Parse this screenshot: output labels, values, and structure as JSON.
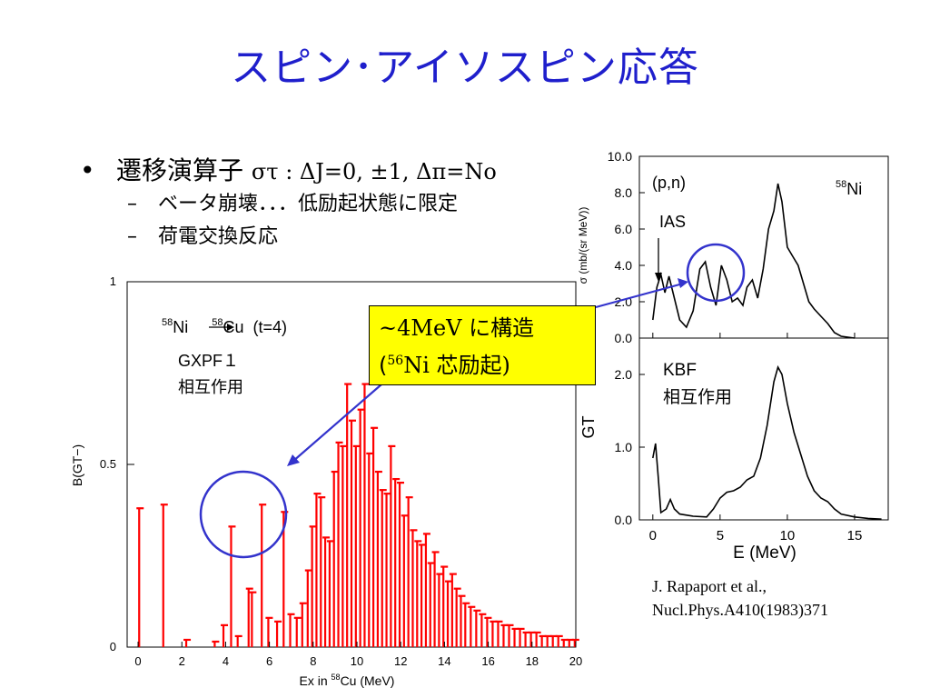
{
  "slide": {
    "title": "スピン･アイソスピン応答",
    "bullet1": {
      "prefix": "遷移演算子 ",
      "math": "στ : ΔJ=0, ±1, Δπ=No"
    },
    "sub1": "ベータ崩壊．．．低励起状態に限定",
    "sub2": "荷電交換反応",
    "callout": {
      "line1": "~4MeV に構造",
      "line2_open": "(",
      "line2_sup": "56",
      "line2_rest": "Ni 芯励起)"
    },
    "reference": {
      "line1": "J. Rapaport et al.,",
      "line2": "Nucl.Phys.A410(1983)371"
    }
  },
  "colors": {
    "title": "#1f1fcc",
    "bars": "#ff0000",
    "circle": "#3333cc",
    "callout_bg": "#ffff00"
  },
  "chart_data": [
    {
      "type": "bar",
      "ylabel": "B(GT−)",
      "xlabel": {
        "pre": "Ex in ",
        "sup": "58",
        "post": "Cu (MeV)"
      },
      "xlim": [
        -0.5,
        20
      ],
      "ylim": [
        0,
        1
      ],
      "xticks": [
        "0",
        "2",
        "4",
        "6",
        "8",
        "10",
        "12",
        "14",
        "16",
        "18",
        "20"
      ],
      "yticks": [
        "0",
        "0.5",
        "1"
      ],
      "annotation_reaction": {
        "sup1": "58",
        "el1": "Ni",
        "sup2": "58",
        "el2": "Cu",
        "rest": "(t=4)"
      },
      "annotation_interaction": [
        "GXPF１",
        "相互作用"
      ],
      "x": [
        0.05,
        1.15,
        2.2,
        3.5,
        3.9,
        4.25,
        4.55,
        5.05,
        5.2,
        5.65,
        5.95,
        6.35,
        6.65,
        6.95,
        7.25,
        7.5,
        7.75,
        7.95,
        8.15,
        8.35,
        8.55,
        8.75,
        8.95,
        9.15,
        9.35,
        9.55,
        9.75,
        9.95,
        10.15,
        10.35,
        10.55,
        10.75,
        10.95,
        11.15,
        11.35,
        11.55,
        11.75,
        11.95,
        12.15,
        12.35,
        12.55,
        12.75,
        12.95,
        13.15,
        13.35,
        13.55,
        13.75,
        13.95,
        14.15,
        14.35,
        14.55,
        14.75,
        14.95,
        15.2,
        15.45,
        15.7,
        15.95,
        16.2,
        16.45,
        16.7,
        16.95,
        17.2,
        17.45,
        17.7,
        17.95,
        18.2,
        18.45,
        18.7,
        18.95,
        19.2,
        19.45,
        19.7,
        19.95
      ],
      "values": [
        0.38,
        0.39,
        0.02,
        0.015,
        0.06,
        0.33,
        0.03,
        0.16,
        0.15,
        0.39,
        0.08,
        0.07,
        0.37,
        0.09,
        0.08,
        0.12,
        0.21,
        0.33,
        0.42,
        0.41,
        0.3,
        0.29,
        0.48,
        0.56,
        0.55,
        0.72,
        0.62,
        0.55,
        0.65,
        0.72,
        0.53,
        0.6,
        0.48,
        0.43,
        0.42,
        0.55,
        0.46,
        0.45,
        0.36,
        0.41,
        0.32,
        0.29,
        0.28,
        0.31,
        0.23,
        0.26,
        0.2,
        0.22,
        0.18,
        0.2,
        0.16,
        0.14,
        0.12,
        0.11,
        0.1,
        0.09,
        0.08,
        0.07,
        0.07,
        0.06,
        0.06,
        0.05,
        0.05,
        0.04,
        0.04,
        0.04,
        0.03,
        0.03,
        0.03,
        0.03,
        0.02,
        0.02,
        0.02
      ]
    },
    {
      "type": "line",
      "ylabel": "σ (mb/(sr MeV))",
      "xlim": [
        -1,
        17.5
      ],
      "ylim": [
        0,
        10
      ],
      "yticks": [
        "0.0",
        "2.0",
        "4.0",
        "6.0",
        "8.0",
        "10.0"
      ],
      "label_reaction": "(p,n)",
      "label_target": {
        "sup": "58",
        "el": "Ni"
      },
      "label_ias": "IAS",
      "x": [
        0,
        0.3,
        0.6,
        0.9,
        1.2,
        1.6,
        2.0,
        2.5,
        3.0,
        3.5,
        3.9,
        4.3,
        4.7,
        5.1,
        5.5,
        5.9,
        6.3,
        6.7,
        7.0,
        7.4,
        7.8,
        8.2,
        8.6,
        9.0,
        9.3,
        9.6,
        10.0,
        10.4,
        10.8,
        11.2,
        11.6,
        12.0,
        12.5,
        13.0,
        13.5,
        14.0,
        14.5,
        15.0
      ],
      "values": [
        1.0,
        2.8,
        3.5,
        2.5,
        3.4,
        2.2,
        1.0,
        0.6,
        1.5,
        3.8,
        4.2,
        2.8,
        1.8,
        4.0,
        3.2,
        2.0,
        2.2,
        1.8,
        2.8,
        3.2,
        2.2,
        3.8,
        6.0,
        7.0,
        8.5,
        7.5,
        5.0,
        4.5,
        4.0,
        3.0,
        2.0,
        1.6,
        1.2,
        0.8,
        0.3,
        0.1,
        0.05,
        0.0
      ]
    },
    {
      "type": "line",
      "ylabel": "GT",
      "xlabel": "E (MeV)",
      "xlim": [
        -1,
        17.5
      ],
      "ylim": [
        0,
        2.5
      ],
      "xticks": [
        "0",
        "5",
        "10",
        "15"
      ],
      "yticks": [
        "0.0",
        "1.0",
        "2.0"
      ],
      "label_interaction": [
        "KBF",
        "相互作用"
      ],
      "x": [
        0,
        0.2,
        0.4,
        0.6,
        1.0,
        1.3,
        1.6,
        2.0,
        3.0,
        4.0,
        4.5,
        5.0,
        5.5,
        6.0,
        6.5,
        7.0,
        7.5,
        8.0,
        8.5,
        9.0,
        9.3,
        9.6,
        10.0,
        10.5,
        11.0,
        11.5,
        12.0,
        12.5,
        13.0,
        13.5,
        14.0,
        15.0,
        16.0,
        17.0
      ],
      "values": [
        0.85,
        1.05,
        0.6,
        0.1,
        0.15,
        0.28,
        0.15,
        0.08,
        0.05,
        0.04,
        0.15,
        0.3,
        0.38,
        0.4,
        0.45,
        0.55,
        0.6,
        0.85,
        1.3,
        1.9,
        2.1,
        2.0,
        1.6,
        1.2,
        0.9,
        0.6,
        0.4,
        0.3,
        0.25,
        0.15,
        0.08,
        0.04,
        0.02,
        0.01
      ]
    }
  ]
}
